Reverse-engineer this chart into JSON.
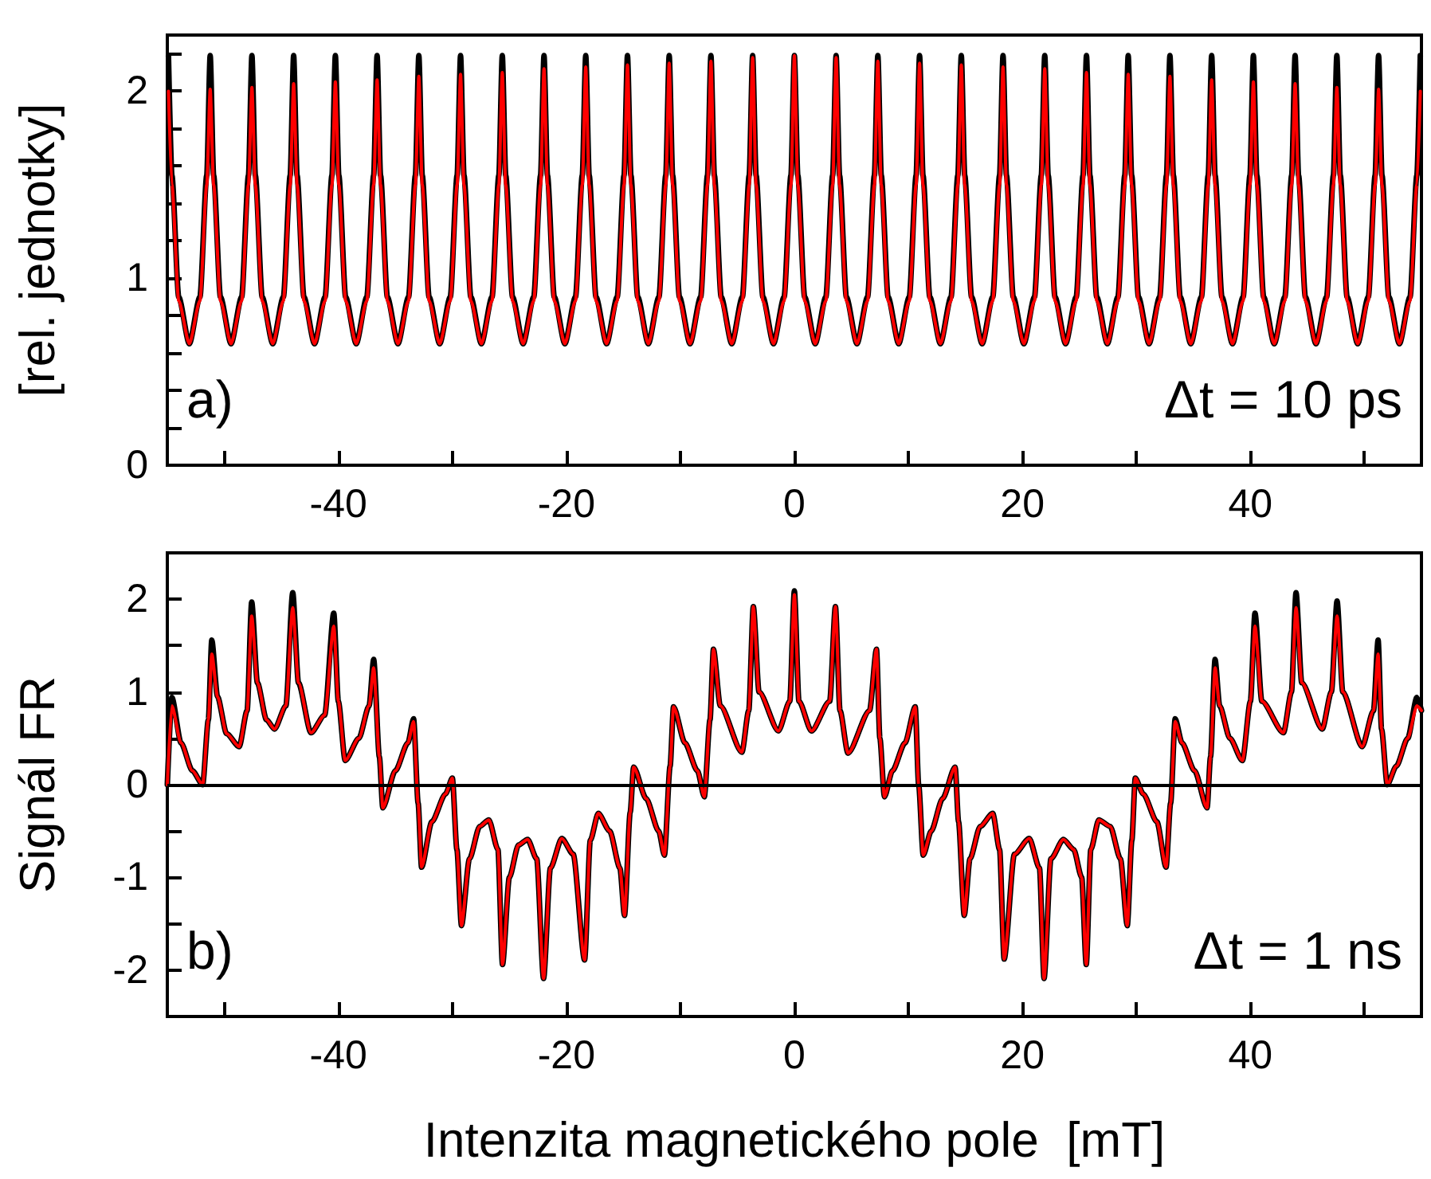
{
  "chart_data": [
    {
      "type": "line",
      "ylabel": "[rel. jednotky]",
      "annotations": [
        "a)",
        "Δt = 10 ps"
      ],
      "marker": "none",
      "grid": false,
      "xlim": [
        -55,
        55
      ],
      "ylim": [
        0,
        2.3
      ],
      "xticks": [
        {
          "value": -50,
          "label": null
        },
        -40,
        {
          "value": -30,
          "label": null
        },
        -20,
        {
          "value": -10,
          "label": null
        },
        0,
        {
          "value": 10,
          "label": null
        },
        20,
        {
          "value": 30,
          "label": null
        },
        40,
        {
          "value": 50,
          "label": null
        }
      ],
      "yticks": [
        0,
        {
          "value": 0.2,
          "label": null
        },
        {
          "value": 0.4,
          "label": null
        },
        {
          "value": 0.6,
          "label": null
        },
        {
          "value": 0.8,
          "label": null
        },
        1,
        {
          "value": 1.2,
          "label": null
        },
        {
          "value": 1.4,
          "label": null
        },
        {
          "value": 1.6,
          "label": null
        },
        {
          "value": 1.8,
          "label": null
        },
        2,
        {
          "value": 2.2,
          "label": null
        }
      ],
      "x": [
        -54.9,
        -54.6,
        -54.0,
        -53.07,
        -52.14,
        -51.54,
        -51.24,
        -50.94,
        -50.34,
        -49.41,
        -48.48,
        -47.88,
        -47.58,
        -47.28,
        -46.68,
        -45.75,
        -44.82,
        -44.22,
        -43.92,
        -43.62,
        -43.02,
        -42.09,
        -41.16,
        -40.56,
        -40.26,
        -39.96,
        -39.36,
        -38.43,
        -37.5,
        -36.9,
        -36.6,
        -36.3,
        -35.7,
        -34.77,
        -33.84,
        -33.24,
        -32.94,
        -32.64,
        -32.04,
        -31.11,
        -30.18,
        -29.58,
        -29.28,
        -28.98,
        -28.38,
        -27.45,
        -26.52,
        -25.92,
        -25.62,
        -25.32,
        -24.72,
        -23.79,
        -22.86,
        -22.26,
        -21.96,
        -21.66,
        -21.06,
        -20.13,
        -19.2,
        -18.6,
        -18.3,
        -18.0,
        -17.4,
        -16.47,
        -15.54,
        -14.94,
        -14.64,
        -14.34,
        -13.74,
        -12.81,
        -11.88,
        -11.28,
        -10.98,
        -10.68,
        -10.08,
        -9.15,
        -8.22,
        -7.62,
        -7.32,
        -7.02,
        -6.42,
        -5.49,
        -4.56,
        -3.96,
        -3.66,
        -3.36,
        -2.76,
        -1.83,
        -0.9,
        -0.3,
        0,
        0.3,
        0.9,
        1.83,
        2.76,
        3.36,
        3.66,
        3.96,
        4.56,
        5.49,
        6.42,
        7.02,
        7.32,
        7.62,
        8.22,
        9.15,
        10.08,
        10.68,
        10.98,
        11.28,
        11.88,
        12.81,
        13.74,
        14.34,
        14.64,
        14.94,
        15.54,
        16.47,
        17.4,
        18.0,
        18.3,
        18.6,
        19.2,
        20.13,
        21.06,
        21.66,
        21.96,
        22.26,
        22.86,
        23.79,
        24.72,
        25.32,
        25.62,
        25.92,
        26.52,
        27.45,
        28.38,
        28.98,
        29.28,
        29.58,
        30.18,
        31.11,
        32.04,
        32.64,
        32.94,
        33.24,
        33.84,
        34.77,
        35.7,
        36.3,
        36.6,
        36.9,
        37.5,
        38.43,
        39.36,
        39.96,
        40.26,
        40.56,
        41.16,
        42.09,
        43.02,
        43.62,
        43.92,
        44.22,
        44.82,
        45.75,
        46.68,
        47.28,
        47.58,
        47.88,
        48.48,
        49.41,
        50.34,
        50.94,
        51.24,
        51.54,
        52.14,
        53.07,
        54.0,
        54.6,
        54.9
      ],
      "series": [
        {
          "color": "#000000",
          "values": [
            2.19,
            1.55,
            0.9,
            0.65,
            0.9,
            1.55,
            2.19,
            1.55,
            0.9,
            0.65,
            0.9,
            1.55,
            2.19,
            1.55,
            0.9,
            0.65,
            0.9,
            1.55,
            2.19,
            1.55,
            0.9,
            0.65,
            0.9,
            1.55,
            2.19,
            1.55,
            0.9,
            0.65,
            0.9,
            1.55,
            2.19,
            1.55,
            0.9,
            0.65,
            0.9,
            1.55,
            2.19,
            1.55,
            0.9,
            0.65,
            0.9,
            1.55,
            2.19,
            1.55,
            0.9,
            0.65,
            0.9,
            1.55,
            2.19,
            1.55,
            0.9,
            0.65,
            0.9,
            1.55,
            2.19,
            1.55,
            0.9,
            0.65,
            0.9,
            1.55,
            2.19,
            1.55,
            0.9,
            0.65,
            0.9,
            1.55,
            2.19,
            1.55,
            0.9,
            0.65,
            0.9,
            1.55,
            2.19,
            1.55,
            0.9,
            0.65,
            0.9,
            1.55,
            2.19,
            1.55,
            0.9,
            0.65,
            0.9,
            1.55,
            2.19,
            1.55,
            0.9,
            0.65,
            0.9,
            1.55,
            2.19,
            1.55,
            0.9,
            0.65,
            0.9,
            1.55,
            2.19,
            1.55,
            0.9,
            0.65,
            0.9,
            1.55,
            2.19,
            1.55,
            0.9,
            0.65,
            0.9,
            1.55,
            2.19,
            1.55,
            0.9,
            0.65,
            0.9,
            1.55,
            2.19,
            1.55,
            0.9,
            0.65,
            0.9,
            1.55,
            2.19,
            1.55,
            0.9,
            0.65,
            0.9,
            1.55,
            2.19,
            1.55,
            0.9,
            0.65,
            0.9,
            1.55,
            2.19,
            1.55,
            0.9,
            0.65,
            0.9,
            1.55,
            2.19,
            1.55,
            0.9,
            0.65,
            0.9,
            1.55,
            2.19,
            1.55,
            0.9,
            0.65,
            0.9,
            1.55,
            2.19,
            1.55,
            0.9,
            0.65,
            0.9,
            1.55,
            2.19,
            1.55,
            0.9,
            0.65,
            0.9,
            1.55,
            2.19,
            1.55,
            0.9,
            0.65,
            0.9,
            1.55,
            2.19,
            1.55,
            0.9,
            0.65,
            0.9,
            1.55,
            2.19,
            1.55,
            0.9,
            0.65,
            0.9,
            1.55,
            2.19
          ]
        },
        {
          "color": "#ff0000",
          "values": [
            2.0,
            1.5,
            0.88,
            0.65,
            0.88,
            1.5,
            2.01,
            1.5,
            0.88,
            0.65,
            0.88,
            1.5,
            2.02,
            1.5,
            0.88,
            0.65,
            0.88,
            1.5,
            2.04,
            1.5,
            0.88,
            0.65,
            0.88,
            1.5,
            2.05,
            1.5,
            0.88,
            0.65,
            0.88,
            1.5,
            2.06,
            1.5,
            0.88,
            0.65,
            0.88,
            1.5,
            2.08,
            1.5,
            0.88,
            0.65,
            0.88,
            1.5,
            2.09,
            1.5,
            0.88,
            0.65,
            0.88,
            1.5,
            2.1,
            1.5,
            0.88,
            0.65,
            0.88,
            1.5,
            2.12,
            1.5,
            0.88,
            0.65,
            0.88,
            1.5,
            2.13,
            1.5,
            0.88,
            0.65,
            0.88,
            1.5,
            2.14,
            1.5,
            0.88,
            0.65,
            0.88,
            1.5,
            2.15,
            1.5,
            0.88,
            0.65,
            0.88,
            1.5,
            2.16,
            1.5,
            0.88,
            0.65,
            0.88,
            1.5,
            2.18,
            1.5,
            0.88,
            0.65,
            0.88,
            1.5,
            2.19,
            1.5,
            0.88,
            0.65,
            0.88,
            1.5,
            2.18,
            1.5,
            0.88,
            0.65,
            0.88,
            1.5,
            2.16,
            1.5,
            0.88,
            0.65,
            0.88,
            1.5,
            2.15,
            1.5,
            0.88,
            0.65,
            0.88,
            1.5,
            2.14,
            1.5,
            0.88,
            0.65,
            0.88,
            1.5,
            2.13,
            1.5,
            0.88,
            0.65,
            0.88,
            1.5,
            2.12,
            1.5,
            0.88,
            0.65,
            0.88,
            1.5,
            2.1,
            1.5,
            0.88,
            0.65,
            0.88,
            1.5,
            2.09,
            1.5,
            0.88,
            0.65,
            0.88,
            1.5,
            2.08,
            1.5,
            0.88,
            0.65,
            0.88,
            1.5,
            2.06,
            1.5,
            0.88,
            0.65,
            0.88,
            1.5,
            2.05,
            1.5,
            0.88,
            0.65,
            0.88,
            1.5,
            2.04,
            1.5,
            0.88,
            0.65,
            0.88,
            1.5,
            2.02,
            1.5,
            0.88,
            0.65,
            0.88,
            1.5,
            2.01,
            1.5,
            0.88,
            0.65,
            0.88,
            1.5,
            2.0
          ]
        }
      ]
    },
    {
      "type": "line",
      "ylabel": "Signál FR",
      "xlabel": "Intenzita magnetického pole  [mT]",
      "annotations": [
        "b)",
        "Δt = 1 ns"
      ],
      "marker": "none",
      "grid": false,
      "xlim": [
        -55,
        55
      ],
      "ylim": [
        -2.5,
        2.5
      ],
      "xticks": [
        {
          "value": -50,
          "label": null
        },
        -40,
        {
          "value": -30,
          "label": null
        },
        -20,
        {
          "value": -10,
          "label": null
        },
        0,
        {
          "value": 10,
          "label": null
        },
        20,
        {
          "value": 30,
          "label": null
        },
        40,
        {
          "value": 50,
          "label": null
        }
      ],
      "yticks": [
        -2,
        {
          "value": -1.5,
          "label": null
        },
        -1,
        {
          "value": -0.5,
          "label": null
        },
        0,
        {
          "value": 0.5,
          "label": null
        },
        1,
        {
          "value": 1.5,
          "label": null
        },
        2
      ],
      "ref_lines": [
        {
          "axis": "y",
          "value": 0,
          "color": "#000000"
        }
      ],
      "x": [
        -55,
        -54.6,
        -53.8,
        -52.8,
        -51.9,
        -51.4,
        -51.1,
        -50.6,
        -49.8,
        -48.7,
        -48.0,
        -47.6,
        -47.1,
        -46.3,
        -45.6,
        -44.6,
        -44.0,
        -43.5,
        -42.4,
        -41.2,
        -40.4,
        -40.0,
        -39.4,
        -38.2,
        -37.3,
        -36.9,
        -36.4,
        -36.1,
        -35.0,
        -33.9,
        -33.4,
        -33.0,
        -32.7,
        -31.8,
        -30.6,
        -30.0,
        -29.6,
        -29.2,
        -28.5,
        -27.6,
        -26.8,
        -26.0,
        -25.6,
        -25.0,
        -24.2,
        -23.4,
        -22.6,
        -22.0,
        -21.4,
        -20.4,
        -19.4,
        -18.4,
        -17.9,
        -17.2,
        -16.2,
        -15.3,
        -14.9,
        -14.4,
        -14.1,
        -13.0,
        -11.9,
        -11.4,
        -10.9,
        -10.6,
        -9.6,
        -8.5,
        -7.9,
        -7.4,
        -7.1,
        -6.5,
        -4.6,
        -4.0,
        -3.6,
        -3.1,
        -1.4,
        -0.4,
        0,
        0.4,
        1.5,
        3.1,
        3.6,
        4.0,
        4.7,
        6.6,
        7.2,
        7.5,
        7.9,
        8.6,
        9.7,
        10.6,
        10.9,
        11.3,
        12.0,
        13.0,
        14.1,
        14.4,
        14.9,
        15.4,
        16.3,
        17.4,
        18.0,
        18.4,
        19.3,
        20.6,
        21.5,
        21.9,
        22.5,
        23.6,
        24.5,
        25.2,
        25.6,
        26.0,
        26.7,
        27.7,
        28.6,
        29.2,
        29.6,
        29.9,
        30.6,
        31.8,
        32.6,
        33.0,
        33.4,
        34.0,
        35.1,
        36.2,
        36.5,
        36.9,
        37.3,
        38.2,
        39.3,
        40.0,
        40.4,
        41.0,
        42.9,
        43.6,
        44.0,
        44.5,
        46.3,
        47.1,
        47.6,
        48.1,
        49.8,
        50.8,
        51.2,
        51.5,
        52.0,
        52.8,
        53.8,
        54.6,
        55
      ],
      "series": [
        {
          "color": "#000000",
          "values": [
            0.0,
            0.94,
            0.45,
            0.15,
            0.0,
            0.7,
            1.56,
            0.95,
            0.55,
            0.41,
            0.8,
            1.97,
            1.1,
            0.7,
            0.6,
            0.85,
            2.07,
            1.1,
            0.56,
            0.75,
            1.85,
            0.9,
            0.26,
            0.5,
            0.85,
            1.35,
            0.3,
            -0.25,
            0.15,
            0.45,
            0.71,
            -0.2,
            -0.89,
            -0.4,
            -0.1,
            0.07,
            -0.7,
            -1.52,
            -0.8,
            -0.45,
            -0.38,
            -0.7,
            -1.94,
            -1.0,
            -0.65,
            -0.59,
            -0.8,
            -2.09,
            -0.9,
            -0.58,
            -0.75,
            -1.89,
            -0.6,
            -0.31,
            -0.5,
            -0.9,
            -1.41,
            -0.3,
            0.19,
            -0.15,
            -0.5,
            -0.76,
            0.2,
            0.84,
            0.45,
            0.15,
            -0.13,
            0.7,
            1.46,
            0.85,
            0.35,
            0.8,
            1.92,
            1.0,
            0.58,
            0.9,
            2.09,
            0.9,
            0.58,
            0.9,
            1.92,
            0.8,
            0.34,
            0.8,
            1.46,
            0.5,
            -0.13,
            0.15,
            0.45,
            0.84,
            0.0,
            -0.76,
            -0.5,
            -0.15,
            0.19,
            -0.4,
            -1.41,
            -0.8,
            -0.45,
            -0.31,
            -0.7,
            -1.88,
            -0.75,
            -0.58,
            -0.9,
            -2.09,
            -0.8,
            -0.59,
            -0.7,
            -1.0,
            -1.94,
            -0.7,
            -0.38,
            -0.45,
            -0.8,
            -1.52,
            -0.6,
            0.07,
            -0.1,
            -0.4,
            -0.89,
            -0.2,
            0.71,
            0.45,
            0.15,
            -0.25,
            0.3,
            1.35,
            0.85,
            0.5,
            0.26,
            0.9,
            1.85,
            0.9,
            0.56,
            1.0,
            2.07,
            1.1,
            0.6,
            1.0,
            1.98,
            1.0,
            0.41,
            0.8,
            1.56,
            0.6,
            0.0,
            0.2,
            0.5,
            0.94,
            0.8
          ]
        },
        {
          "color": "#ff0000",
          "values": [
            0.0,
            0.85,
            0.45,
            0.15,
            0.0,
            0.7,
            1.41,
            0.95,
            0.55,
            0.41,
            0.8,
            1.82,
            1.1,
            0.7,
            0.6,
            0.85,
            1.91,
            1.1,
            0.56,
            0.75,
            1.71,
            0.9,
            0.26,
            0.5,
            0.85,
            1.26,
            0.3,
            -0.25,
            0.15,
            0.45,
            0.68,
            -0.2,
            -0.89,
            -0.4,
            -0.1,
            0.07,
            -0.7,
            -1.52,
            -0.8,
            -0.45,
            -0.38,
            -0.7,
            -1.94,
            -1.0,
            -0.65,
            -0.59,
            -0.8,
            -2.09,
            -0.9,
            -0.58,
            -0.75,
            -1.89,
            -0.6,
            -0.31,
            -0.5,
            -0.9,
            -1.41,
            -0.3,
            0.19,
            -0.15,
            -0.5,
            -0.76,
            0.2,
            0.84,
            0.45,
            0.15,
            -0.13,
            0.7,
            1.46,
            0.85,
            0.35,
            0.8,
            1.92,
            1.0,
            0.58,
            0.9,
            2.05,
            0.9,
            0.58,
            0.9,
            1.92,
            0.8,
            0.34,
            0.8,
            1.46,
            0.5,
            -0.13,
            0.15,
            0.45,
            0.84,
            0.0,
            -0.76,
            -0.5,
            -0.15,
            0.19,
            -0.4,
            -1.41,
            -0.8,
            -0.45,
            -0.31,
            -0.7,
            -1.88,
            -0.75,
            -0.58,
            -0.9,
            -2.09,
            -0.8,
            -0.59,
            -0.7,
            -1.0,
            -1.94,
            -0.7,
            -0.38,
            -0.45,
            -0.8,
            -1.52,
            -0.6,
            0.07,
            -0.1,
            -0.4,
            -0.89,
            -0.2,
            0.68,
            0.45,
            0.15,
            -0.25,
            0.3,
            1.26,
            0.85,
            0.5,
            0.26,
            0.9,
            1.71,
            0.9,
            0.56,
            1.0,
            1.91,
            1.1,
            0.6,
            1.0,
            1.82,
            1.0,
            0.41,
            0.8,
            1.41,
            0.6,
            0.0,
            0.2,
            0.5,
            0.85,
            0.8
          ]
        }
      ]
    }
  ]
}
